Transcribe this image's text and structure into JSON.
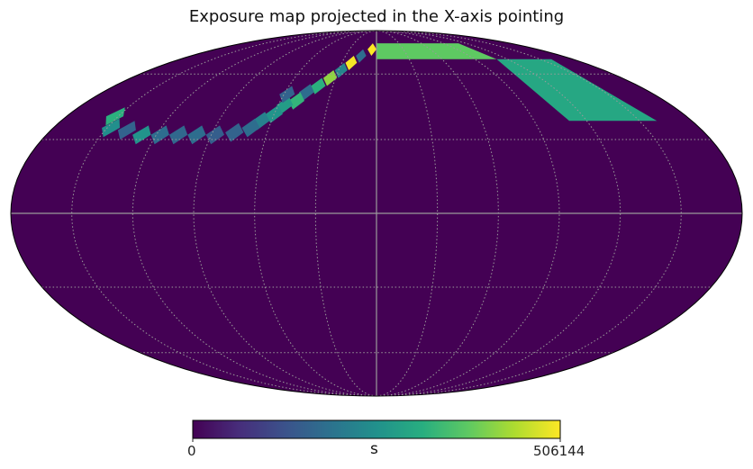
{
  "chart_data": {
    "type": "heatmap",
    "title": "Exposure map projected in the X-axis pointing",
    "projection": "mollweide",
    "colormap": "viridis",
    "background_color": "#440154",
    "graticule": {
      "meridian_step_deg": 30,
      "parallel_step_deg": 30,
      "style": "dotted",
      "color": "#9b9b9b"
    },
    "colorbar": {
      "min": 0,
      "max": 506144,
      "min_label": "0",
      "max_label": "506144",
      "unit": "s"
    },
    "tiles": [
      {
        "lon": -5,
        "lat": 74,
        "value": 506144
      },
      {
        "lon": -15,
        "lat": 70,
        "value": 180000
      },
      {
        "lon": -22,
        "lat": 66,
        "value": 500000
      },
      {
        "lon": -28,
        "lat": 62,
        "value": 230000
      },
      {
        "lon": -34,
        "lat": 58,
        "value": 420000
      },
      {
        "lon": -40,
        "lat": 54,
        "value": 320000
      },
      {
        "lon": -46,
        "lat": 51,
        "value": 180000
      },
      {
        "lon": -50,
        "lat": 47,
        "value": 330000
      },
      {
        "lon": -56,
        "lat": 45,
        "value": 280000
      },
      {
        "lon": -60,
        "lat": 41,
        "value": 260000
      },
      {
        "lon": -66,
        "lat": 38,
        "value": 220000
      },
      {
        "lon": -70,
        "lat": 35,
        "value": 180000
      },
      {
        "lon": -78,
        "lat": 33,
        "value": 160000
      },
      {
        "lon": -88,
        "lat": 32,
        "value": 150000
      },
      {
        "lon": -98,
        "lat": 32,
        "value": 180000
      },
      {
        "lon": -108,
        "lat": 32,
        "value": 170000
      },
      {
        "lon": -118,
        "lat": 32,
        "value": 180000
      },
      {
        "lon": -128,
        "lat": 32,
        "value": 260000
      },
      {
        "lon": -138,
        "lat": 34,
        "value": 160000
      },
      {
        "lon": -148,
        "lat": 35,
        "value": 250000
      },
      {
        "lon": -152,
        "lat": 40,
        "value": 320000
      },
      {
        "lon": -58,
        "lat": 50,
        "value": 160000
      }
    ],
    "arc_bands": [
      {
        "lon_from": 0,
        "lon_to": 110,
        "lat_from": 68,
        "lat_to": 78,
        "value": 380000
      },
      {
        "lon_from": 110,
        "lon_to": 160,
        "lat_from": 38,
        "lat_to": 68,
        "value": 300000
      }
    ]
  }
}
